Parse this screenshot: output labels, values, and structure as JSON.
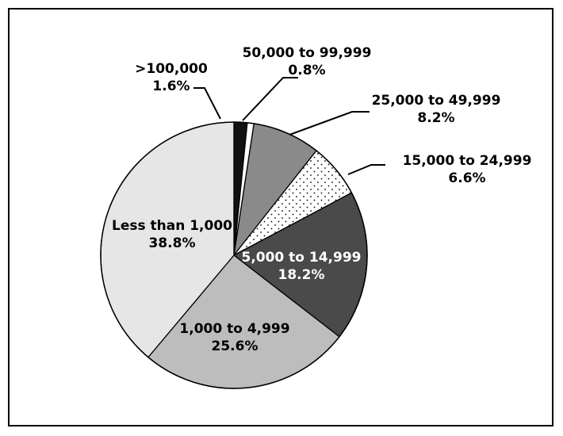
{
  "chart_data": {
    "type": "pie",
    "start": "top",
    "direction": "clockwise",
    "slices": [
      {
        "label": ">100,000",
        "percent_label": "1.6%",
        "value": 1.6,
        "color": "#111111",
        "pattern": "solid"
      },
      {
        "label": "50,000 to 99,999",
        "percent_label": "0.8%",
        "value": 0.8,
        "color": "#ffffff",
        "pattern": "solid"
      },
      {
        "label": "25,000 to 49,999",
        "percent_label": "8.2%",
        "value": 8.2,
        "color": "#8a8a8a",
        "pattern": "solid"
      },
      {
        "label": "15,000 to 24,999",
        "percent_label": "6.6%",
        "value": 6.6,
        "color": "#ffffff",
        "pattern": "dots"
      },
      {
        "label": "5,000 to 14,999",
        "percent_label": "18.2%",
        "value": 18.2,
        "color": "#4a4a4a",
        "pattern": "solid",
        "label_color": "#ffffff"
      },
      {
        "label": "1,000 to 4,999",
        "percent_label": "25.6%",
        "value": 25.6,
        "color": "#bdbdbd",
        "pattern": "solid"
      },
      {
        "label": "Less than 1,000",
        "percent_label": "38.8%",
        "value": 38.8,
        "color": "#e6e6e6",
        "pattern": "solid"
      }
    ]
  }
}
